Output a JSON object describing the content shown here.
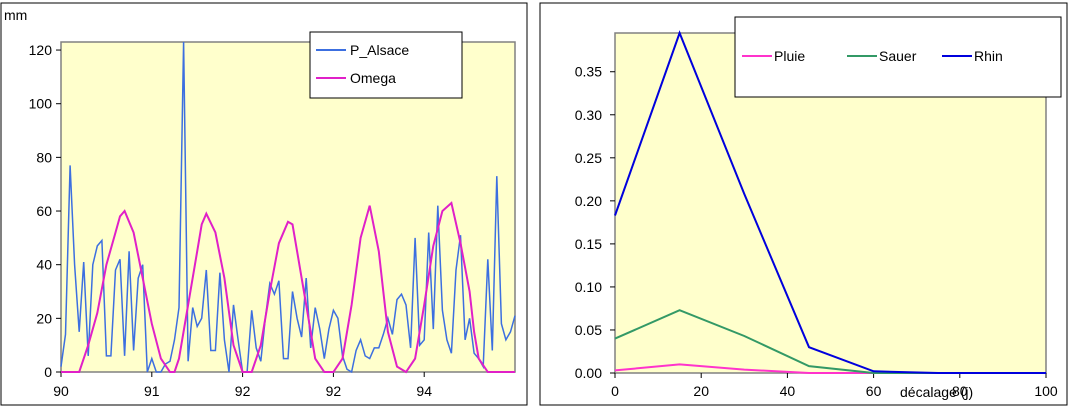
{
  "chart_data": [
    {
      "type": "line",
      "title": "",
      "ylabel": "mm",
      "xlabel": "",
      "ylim": [
        0,
        123
      ],
      "yticks": [
        0,
        20,
        40,
        60,
        80,
        100,
        120
      ],
      "xlim": [
        0,
        100
      ],
      "xtick_labels": [
        {
          "x": 0,
          "label": "90"
        },
        {
          "x": 20,
          "label": "91"
        },
        {
          "x": 40,
          "label": "92"
        },
        {
          "x": 60,
          "label": "92"
        },
        {
          "x": 80,
          "label": "94"
        }
      ],
      "plot_background": "#ffffcc",
      "legend_position": "top-right",
      "series": [
        {
          "name": "P_Alsace",
          "color": "#3c6fe0",
          "x": [
            0,
            1,
            2,
            3,
            4,
            5,
            6,
            7,
            8,
            9,
            10,
            11,
            12,
            13,
            14,
            15,
            16,
            17,
            18,
            19,
            20,
            21,
            22,
            23,
            24,
            25,
            26,
            27,
            28,
            29,
            30,
            31,
            32,
            33,
            34,
            35,
            36,
            37,
            38,
            39,
            40,
            41,
            42,
            43,
            44,
            45,
            46,
            47,
            48,
            49,
            50,
            51,
            52,
            53,
            54,
            55,
            56,
            57,
            58,
            59,
            60,
            61,
            62,
            63,
            64,
            65,
            66,
            67,
            68,
            69,
            70,
            71,
            72,
            73,
            74,
            75,
            76,
            77,
            78,
            79,
            80,
            81,
            82,
            83,
            84,
            85,
            86,
            87,
            88,
            89,
            90,
            91,
            92,
            93,
            94,
            95,
            96,
            97,
            98,
            99,
            100
          ],
          "values": [
            2,
            14,
            77,
            40,
            15,
            41,
            6,
            40,
            47,
            49,
            6,
            6,
            38,
            42,
            6,
            45,
            8,
            35,
            40,
            0,
            5,
            0,
            0,
            3,
            4,
            12,
            24,
            123,
            4,
            24,
            17,
            20,
            38,
            8,
            8,
            37,
            12,
            0,
            25,
            12,
            0,
            0,
            23,
            9,
            4,
            20,
            33,
            29,
            34,
            5,
            5,
            30,
            20,
            13,
            35,
            9,
            24,
            16,
            5,
            16,
            23,
            20,
            6,
            1,
            0,
            8,
            12,
            6,
            5,
            9,
            9,
            14,
            20,
            14,
            27,
            29,
            25,
            9,
            50,
            10,
            12,
            52,
            16,
            62,
            23,
            12,
            7,
            38,
            51,
            12,
            20,
            7,
            5,
            2,
            42,
            8,
            73,
            18,
            12,
            15,
            21
          ],
          "note_sampled_every_x": 1
        },
        {
          "name": "Omega",
          "color": "#e020c8",
          "x": [
            0,
            2,
            4,
            6,
            8,
            10,
            12,
            13,
            14,
            16,
            18,
            20,
            22,
            24,
            25,
            26,
            28,
            30,
            31,
            32,
            34,
            36,
            38,
            40,
            42,
            44,
            46,
            48,
            50,
            51,
            52,
            54,
            56,
            58,
            60,
            62,
            64,
            66,
            68,
            70,
            71,
            72,
            74,
            76,
            78,
            80,
            82,
            84,
            86,
            88,
            90,
            91,
            92,
            94,
            96,
            98,
            100
          ],
          "values": [
            0,
            0,
            0,
            10,
            22,
            40,
            52,
            58,
            60,
            52,
            35,
            18,
            5,
            0,
            0,
            5,
            25,
            45,
            55,
            59,
            52,
            35,
            10,
            0,
            0,
            10,
            30,
            48,
            56,
            55,
            45,
            25,
            5,
            0,
            0,
            5,
            25,
            50,
            62,
            45,
            30,
            15,
            2,
            0,
            5,
            25,
            47,
            60,
            63,
            48,
            30,
            15,
            5,
            0,
            0,
            0,
            0
          ]
        }
      ],
      "legend": [
        "P_Alsace",
        "Omega"
      ]
    },
    {
      "type": "line",
      "title": "",
      "xlabel": "décalage  (j)",
      "ylabel": "",
      "xlim": [
        0,
        100
      ],
      "ylim": [
        0,
        0.395
      ],
      "yticks": [
        0,
        0.05,
        0.1,
        0.15,
        0.2,
        0.25,
        0.3,
        0.35
      ],
      "ytick_labels": [
        "0.00",
        "0.05",
        "0.10",
        "0.15",
        "0.20",
        "0.25",
        "0.30",
        "0.35"
      ],
      "xticks": [
        0,
        20,
        40,
        60,
        80,
        100
      ],
      "xtick_labels": [
        "0",
        "20",
        "40",
        "60",
        "80",
        "100"
      ],
      "plot_background": "#ffffcc",
      "legend_position": "top",
      "series": [
        {
          "name": "Pluie",
          "color": "#ff33cc",
          "x": [
            0,
            15,
            30,
            45,
            60
          ],
          "values": [
            0.003,
            0.01,
            0.004,
            0.0,
            0.0
          ]
        },
        {
          "name": "Sauer",
          "color": "#339966",
          "x": [
            0,
            15,
            30,
            45,
            60,
            75,
            90,
            100
          ],
          "values": [
            0.04,
            0.073,
            0.043,
            0.008,
            0.0,
            0.0,
            0.0,
            0.0
          ]
        },
        {
          "name": "Rhin",
          "color": "#0000dd",
          "x": [
            0,
            15,
            30,
            45,
            60,
            75,
            90,
            100
          ],
          "values": [
            0.183,
            0.395,
            0.208,
            0.03,
            0.002,
            0.0,
            0.0,
            0.0
          ]
        }
      ],
      "legend": [
        "Pluie",
        "Sauer",
        "Rhin"
      ]
    }
  ]
}
